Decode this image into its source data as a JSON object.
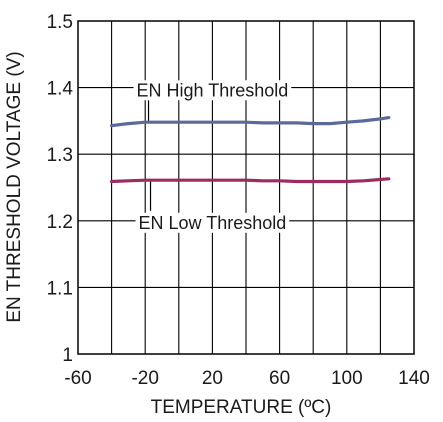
{
  "chart_data": {
    "type": "line",
    "title": "",
    "xlabel": "TEMPERATURE (ºC)",
    "ylabel": "EN THRESHOLD VOLTAGE (V)",
    "xlim": [
      -60,
      140
    ],
    "ylim": [
      1.0,
      1.5
    ],
    "x_ticks": [
      "-60",
      "-20",
      "20",
      "60",
      "100",
      "140"
    ],
    "y_ticks": [
      "1.5",
      "1.4",
      "1.3",
      "1.2",
      "1.1",
      "1"
    ],
    "x_grid_step": 20,
    "y_grid_step": 0.1,
    "grid": true,
    "legend": "none",
    "series": [
      {
        "name": "EN High Threshold",
        "color": "#5b6a9a",
        "x": [
          -40,
          -30,
          -20,
          -10,
          0,
          10,
          20,
          30,
          40,
          50,
          60,
          70,
          80,
          90,
          100,
          110,
          120,
          125
        ],
        "y": [
          1.343,
          1.346,
          1.348,
          1.348,
          1.348,
          1.348,
          1.348,
          1.348,
          1.348,
          1.347,
          1.347,
          1.347,
          1.346,
          1.346,
          1.348,
          1.35,
          1.353,
          1.355
        ]
      },
      {
        "name": "EN Low Threshold",
        "color": "#9a2d5e",
        "x": [
          -40,
          -30,
          -20,
          -10,
          0,
          10,
          20,
          30,
          40,
          50,
          60,
          70,
          80,
          90,
          100,
          110,
          120,
          125
        ],
        "y": [
          1.259,
          1.26,
          1.261,
          1.261,
          1.261,
          1.261,
          1.261,
          1.261,
          1.261,
          1.26,
          1.26,
          1.259,
          1.259,
          1.259,
          1.259,
          1.26,
          1.262,
          1.263
        ]
      }
    ],
    "annotations": [
      {
        "text": "EN High Threshold",
        "series": 0,
        "at_x": 20,
        "label_y": 1.396
      },
      {
        "text": "EN Low Threshold",
        "series": 1,
        "at_x": 20,
        "label_y": 1.197
      }
    ]
  }
}
